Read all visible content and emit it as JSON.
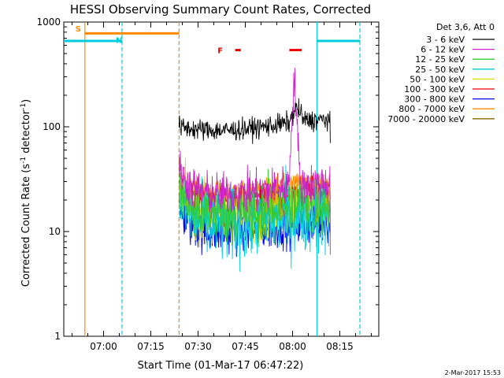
{
  "chart_data": {
    "type": "line",
    "title": "HESSI Observing Summary Count Rates, Corrected",
    "xlabel": "Start Time (01-Mar-17 06:47:22)",
    "ylabel_main": "Corrected Count Rate (s",
    "ylabel_sup1": "-1",
    "ylabel_mid": " detector",
    "ylabel_sup2": "-1",
    "ylabel_end": ")",
    "x_range_minutes": [
      0,
      100
    ],
    "x_start": "06:47:22",
    "y_scale": "log",
    "ylim": [
      1,
      1000
    ],
    "x_ticks": [
      "07:00",
      "07:15",
      "07:30",
      "07:45",
      "08:00",
      "08:15"
    ],
    "x_tick_minutes": [
      12.63,
      27.63,
      42.63,
      57.63,
      72.63,
      87.63
    ],
    "y_ticks": [
      "1",
      "10",
      "100",
      "1000"
    ],
    "y_tick_values": [
      1,
      10,
      100,
      1000
    ],
    "legend": {
      "header": "Det 3,6, Att 0",
      "entries": [
        {
          "label": "3 - 6 keV",
          "color": "#000000"
        },
        {
          "label": "6 - 12 keV",
          "color": "#cc22cc"
        },
        {
          "label": "12 - 25 keV",
          "color": "#33cc33"
        },
        {
          "label": "25 - 50 keV",
          "color": "#00ccdd"
        },
        {
          "label": "50 - 100 keV",
          "color": "#dddd00"
        },
        {
          "label": "100 - 300 keV",
          "color": "#ee0000"
        },
        {
          "label": "300 - 800 keV",
          "color": "#0000ee"
        },
        {
          "label": "800 - 7000 keV",
          "color": "#ff8800"
        },
        {
          "label": "7000 - 20000 keV",
          "color": "#886600"
        }
      ]
    },
    "series": [
      {
        "name": "3 - 6 keV",
        "color": "#000000",
        "start": 36.6,
        "end": 84.6,
        "baseline": 105,
        "noise": 0.05,
        "spike": {
          "at": 74.0,
          "peak": 145,
          "width": 1.5
        },
        "tail_drop": 70
      },
      {
        "name": "6 - 12 keV",
        "color": "#cc22cc",
        "start": 36.6,
        "end": 84.6,
        "baseline": 26,
        "noise": 0.1,
        "spike": {
          "at": 73.2,
          "peak": 240,
          "width": 0.9
        },
        "tail_drop": 6
      },
      {
        "name": "12 - 25 keV",
        "color": "#33cc33",
        "start": 36.6,
        "end": 84.6,
        "baseline": 17,
        "noise": 0.14,
        "tail_drop": 10
      },
      {
        "name": "25 - 50 keV",
        "color": "#00ccdd",
        "start": 36.6,
        "end": 84.6,
        "baseline": 13,
        "noise": 0.18,
        "tail_drop": 9
      },
      {
        "name": "50 - 100 keV",
        "color": "#dddd00",
        "start": 36.6,
        "end": 84.6,
        "baseline": 17,
        "noise": 0.14,
        "tail_drop": 12
      },
      {
        "name": "100 - 300 keV",
        "color": "#ee0000",
        "start": 36.6,
        "end": 84.6,
        "baseline": 20,
        "noise": 0.1,
        "tail_drop": 15
      },
      {
        "name": "300 - 800 keV",
        "color": "#0000ee",
        "start": 36.6,
        "end": 84.6,
        "baseline": 11,
        "noise": 0.1,
        "tail_drop": 10
      },
      {
        "name": "800 - 7000 keV",
        "color": "#ff8800",
        "start": 36.6,
        "end": 84.6,
        "baseline": 27,
        "noise": 0.05,
        "tail_drop": 22
      },
      {
        "name": "7000 - 20000 keV",
        "color": "#886600",
        "start": 36.6,
        "end": 84.6,
        "baseline": 24,
        "noise": 0.03,
        "tail_drop": 20
      }
    ],
    "annotations": [
      {
        "label": "S",
        "color": "#ff8800",
        "x_minute": 6.7,
        "y_value": 870
      },
      {
        "label": "N",
        "color": "#00ccdd",
        "x_minute": 19.5,
        "y_value": 680
      },
      {
        "label": "F",
        "color": "#ee0000",
        "x_minute": 51.8,
        "y_value": 540
      }
    ],
    "flag_bars": [
      {
        "name": "saa-bar",
        "color": "#ff8800",
        "start": 6.7,
        "end": 36.6,
        "y_value": 780
      },
      {
        "name": "night-bar-left",
        "color": "#00ccdd",
        "start": 0,
        "end": 18.5,
        "y_value": 660
      },
      {
        "name": "night-bar-right",
        "color": "#00ccdd",
        "start": 80.4,
        "end": 94.0,
        "y_value": 660
      },
      {
        "name": "flare-bar-1",
        "color": "#ee0000",
        "start": 54.4,
        "end": 56.2,
        "y_value": 540
      },
      {
        "name": "flare-bar-2",
        "color": "#ee0000",
        "start": 71.6,
        "end": 75.5,
        "y_value": 540
      }
    ],
    "vertical_lines": [
      {
        "name": "saa-start-line",
        "color": "#ff8800",
        "x_minute": 6.7,
        "dashed": false
      },
      {
        "name": "night-end-line",
        "color": "#00ccdd",
        "x_minute": 18.5,
        "dashed": true
      },
      {
        "name": "saa-end-line",
        "color": "#ff8800",
        "x_minute": 36.6,
        "dashed": true
      },
      {
        "name": "night-start-line",
        "color": "#00ccdd",
        "x_minute": 80.4,
        "dashed": false
      },
      {
        "name": "night-end-line-2",
        "color": "#00ccdd",
        "x_minute": 94.0,
        "dashed": true
      }
    ],
    "footer_date": "2-Mar-2017 15:53"
  }
}
